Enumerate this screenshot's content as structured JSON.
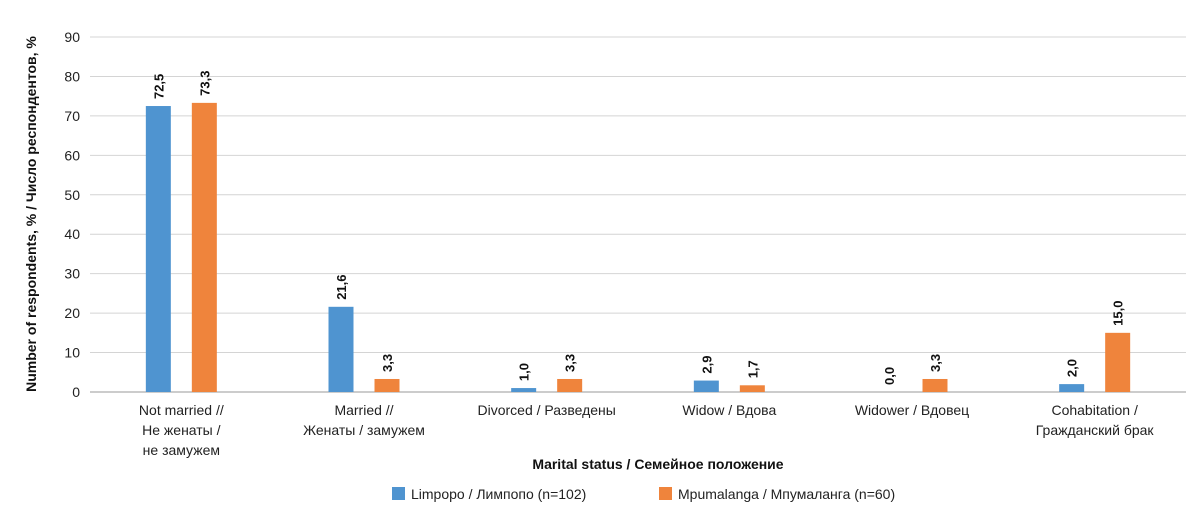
{
  "chart_data": {
    "type": "bar",
    "categories": [
      [
        "Not married //",
        "Не женаты /",
        "не замужем"
      ],
      [
        "Married //",
        "Женаты / замужем"
      ],
      [
        "Divorced / Разведены"
      ],
      [
        "Widow / Вдова"
      ],
      [
        "Widower / Вдовец"
      ],
      [
        "Cohabitation /",
        "Гражданский брак"
      ]
    ],
    "series": [
      {
        "name": "Limpopo / Лимпопо (n=102)",
        "color": "#4f94d0",
        "values": [
          72.5,
          21.6,
          1.0,
          2.9,
          0.0,
          2.0
        ],
        "labels": [
          "72,5",
          "21,6",
          "1,0",
          "2,9",
          "0,0",
          "2,0"
        ]
      },
      {
        "name": "Mpumalanga / Мпумаланга (n=60)",
        "color": "#ef843c",
        "values": [
          73.3,
          3.3,
          3.3,
          1.7,
          3.3,
          15.0
        ],
        "labels": [
          "73,3",
          "3,3",
          "3,3",
          "1,7",
          "3,3",
          "15,0"
        ]
      }
    ],
    "yticks": [
      "0",
      "10",
      "20",
      "30",
      "40",
      "50",
      "60",
      "70",
      "80",
      "90"
    ],
    "ylim": [
      0,
      90
    ],
    "xlabel": "Marital status / Семейное положение",
    "ylabel": "Number of respondents, % / Число респондентов, %",
    "grid": true,
    "legend_position": "bottom"
  }
}
